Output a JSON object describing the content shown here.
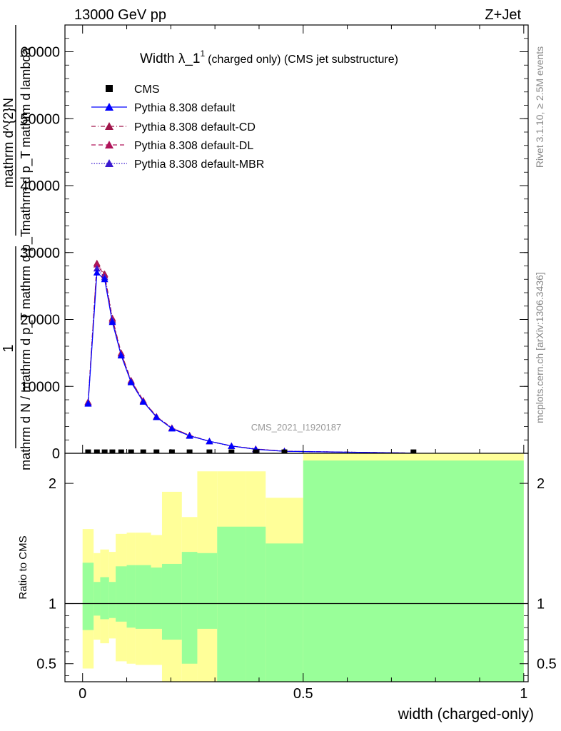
{
  "header": {
    "left": "13000 GeV pp",
    "right": "Z+Jet"
  },
  "side_text": {
    "rivet": "Rivet 3.1.10, ≥ 2.5M events",
    "mcplots": "mcplots.cern.ch [arXiv:1306.3436]"
  },
  "watermark": "CMS_2021_I1920187",
  "chart_data": [
    {
      "type": "line",
      "title_main": "Width λ_1",
      "title_sup": "1",
      "title_suffix": "(charged only) (CMS jet substructure)",
      "ylabel_lines": [
        "1",
        "mathrm d N / mathrm d p_T mathrm d p_T",
        "mathrm d^{2}N",
        "mathrm d p_T mathrm d lambda"
      ],
      "xlim": [
        -0.04,
        1.01
      ],
      "ylim": [
        0,
        64000
      ],
      "yticks": [
        0,
        10000,
        20000,
        30000,
        40000,
        50000,
        60000
      ],
      "ytick_labels": [
        "0",
        "10000",
        "20000",
        "30000",
        "40000",
        "50000",
        "60000"
      ],
      "legend": [
        {
          "name": "CMS",
          "color": "#000000",
          "marker": "square",
          "line": "none"
        },
        {
          "name": "Pythia 8.308 default",
          "color": "#0000ff",
          "marker": "triangle",
          "line": "solid"
        },
        {
          "name": "Pythia 8.308 default-CD",
          "color": "#a0154a",
          "marker": "triangle",
          "line": "dashdot"
        },
        {
          "name": "Pythia 8.308 default-DL",
          "color": "#b0145a",
          "marker": "triangle",
          "line": "dashed"
        },
        {
          "name": "Pythia 8.308 default-MBR",
          "color": "#3a1ad0",
          "marker": "triangle",
          "line": "dotted"
        }
      ],
      "x": [
        0.0125,
        0.0325,
        0.05,
        0.0675,
        0.0875,
        0.11,
        0.1375,
        0.1675,
        0.2025,
        0.2425,
        0.2875,
        0.3375,
        0.3925,
        0.4575,
        0.75
      ],
      "cms_values": [
        150,
        150,
        150,
        150,
        150,
        150,
        150,
        150,
        150,
        150,
        150,
        150,
        150,
        150,
        150
      ],
      "series": [
        {
          "name": "Pythia 8.308 default",
          "values": [
            7400,
            27000,
            26000,
            19600,
            14600,
            10600,
            7700,
            5400,
            3700,
            2600,
            1800,
            1100,
            600,
            300,
            30
          ]
        },
        {
          "name": "Pythia 8.308 default-CD",
          "values": [
            7700,
            28400,
            26800,
            20200,
            15000,
            10900,
            7900,
            5500,
            3800,
            2700,
            1800,
            1100,
            650,
            320,
            30
          ]
        },
        {
          "name": "Pythia 8.308 default-DL",
          "values": [
            7600,
            28200,
            26600,
            20000,
            14900,
            10800,
            7850,
            5450,
            3780,
            2680,
            1790,
            1090,
            640,
            310,
            30
          ]
        },
        {
          "name": "Pythia 8.308 default-MBR",
          "values": [
            7500,
            27600,
            26300,
            19800,
            14700,
            10700,
            7750,
            5420,
            3720,
            2620,
            1770,
            1080,
            620,
            300,
            30
          ]
        }
      ]
    },
    {
      "type": "area",
      "ylabel": "Ratio to CMS",
      "xlabel": "width (charged-only)",
      "xlim": [
        -0.04,
        1.01
      ],
      "ylim": [
        0.35,
        2.25
      ],
      "xticks": [
        0,
        0.5,
        1
      ],
      "xtick_labels": [
        "0",
        "0.5",
        "1"
      ],
      "yticks": [
        0.5,
        1,
        2
      ],
      "ytick_labels": [
        "0.5",
        "1",
        "2"
      ],
      "bin_edges": [
        0,
        0.025,
        0.04,
        0.06,
        0.075,
        0.1,
        0.12,
        0.155,
        0.18,
        0.225,
        0.26,
        0.305,
        0.37,
        0.415,
        0.5,
        1.0
      ],
      "band_inner_color": "#99ff99",
      "band_outer_color": "#ffff99",
      "green_band": {
        "upper": [
          1.34,
          1.18,
          1.22,
          1.18,
          1.31,
          1.32,
          1.32,
          1.3,
          1.33,
          1.43,
          1.42,
          1.64,
          1.64,
          1.5,
          2.19
        ],
        "lower": [
          0.78,
          0.9,
          0.87,
          0.88,
          0.85,
          0.8,
          0.79,
          0.79,
          0.7,
          0.5,
          0.79,
          0.32,
          0.32,
          0.35,
          0.3
        ]
      },
      "yellow_band": {
        "upper": [
          1.62,
          1.42,
          1.45,
          1.43,
          1.58,
          1.59,
          1.59,
          1.57,
          1.93,
          1.72,
          2.1,
          2.1,
          2.1,
          1.88,
          2.35
        ],
        "lower": [
          0.46,
          0.7,
          0.67,
          0.71,
          0.52,
          0.5,
          0.49,
          0.49,
          0.3,
          0.3,
          0.3,
          0.3,
          0.3,
          0.3,
          0.3
        ]
      },
      "reference_line": 1
    }
  ]
}
